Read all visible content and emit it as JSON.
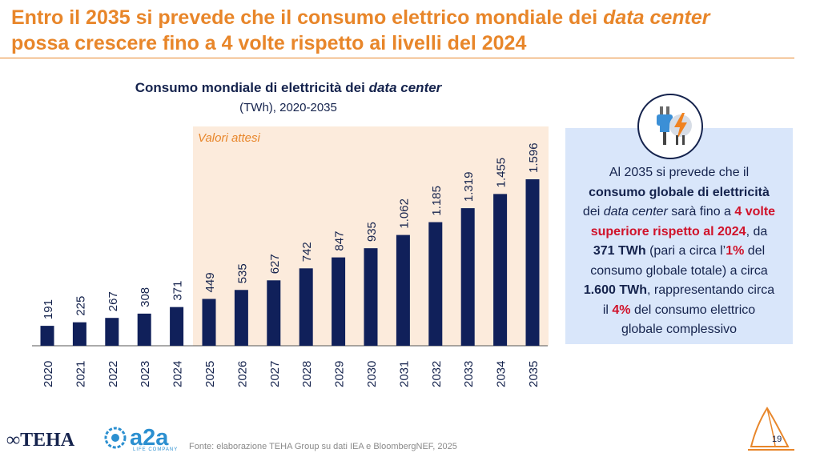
{
  "header": {
    "title_part1": "Entro il 2035 si prevede che il consumo elettrico mondiale dei ",
    "title_italic": "data center",
    "title_part2": "possa crescere fino a 4 volte rispetto ai livelli del 2024"
  },
  "chart_data": {
    "type": "bar",
    "title_part1": "Consumo mondiale di elettricità dei ",
    "title_italic": "data center",
    "subtitle": "(TWh), 2020-2035",
    "categories": [
      "2020",
      "2021",
      "2022",
      "2023",
      "2024",
      "2025",
      "2026",
      "2027",
      "2028",
      "2029",
      "2030",
      "2031",
      "2032",
      "2033",
      "2034",
      "2035"
    ],
    "values": [
      191,
      225,
      267,
      308,
      371,
      449,
      535,
      627,
      742,
      847,
      935,
      1062,
      1185,
      1319,
      1455,
      1596
    ],
    "value_labels": [
      "191",
      "225",
      "267",
      "308",
      "371",
      "449",
      "535",
      "627",
      "742",
      "847",
      "935",
      "1.062",
      "1.185",
      "1.319",
      "1.455",
      "1.596"
    ],
    "expected_label": "Valori attesi",
    "expected_from": "2025",
    "ylim": [
      0,
      1700
    ],
    "bar_color": "#10205a",
    "expected_bg_color": "#fcebdc"
  },
  "info": {
    "line1": "Al 2035 si prevede che il",
    "bold1": "consumo globale di elettricità",
    "line2a": "dei ",
    "line2_italic": "data center",
    "line2b": " sarà fino a ",
    "red1": "4 volte",
    "red2": "superiore rispetto al 2024",
    "line3a": ", da",
    "bold2": "371 TWh",
    "line4a": " (pari a circa l’",
    "red3": "1%",
    "line4b": " del",
    "line5": "consumo globale totale) a circa",
    "bold3": "1.600 TWh",
    "line6a": ", rappresentando circa",
    "line7a": "il ",
    "red4": "4%",
    "line7b": " del consumo elettrico",
    "line8": "globale complessivo",
    "icon": "plug-lightning-icon"
  },
  "footer": {
    "logo_teha": "TEHA",
    "logo_a2a": "a2a",
    "logo_a2a_sub": "LIFE COMPANY",
    "source": "Fonte: elaborazione TEHA Group su dati IEA e BloombergNEF, 2025",
    "page_number": "19"
  },
  "colors": {
    "accent": "#e8862a",
    "navy": "#15234d",
    "red": "#d0122a",
    "panel": "#d9e6fa"
  }
}
